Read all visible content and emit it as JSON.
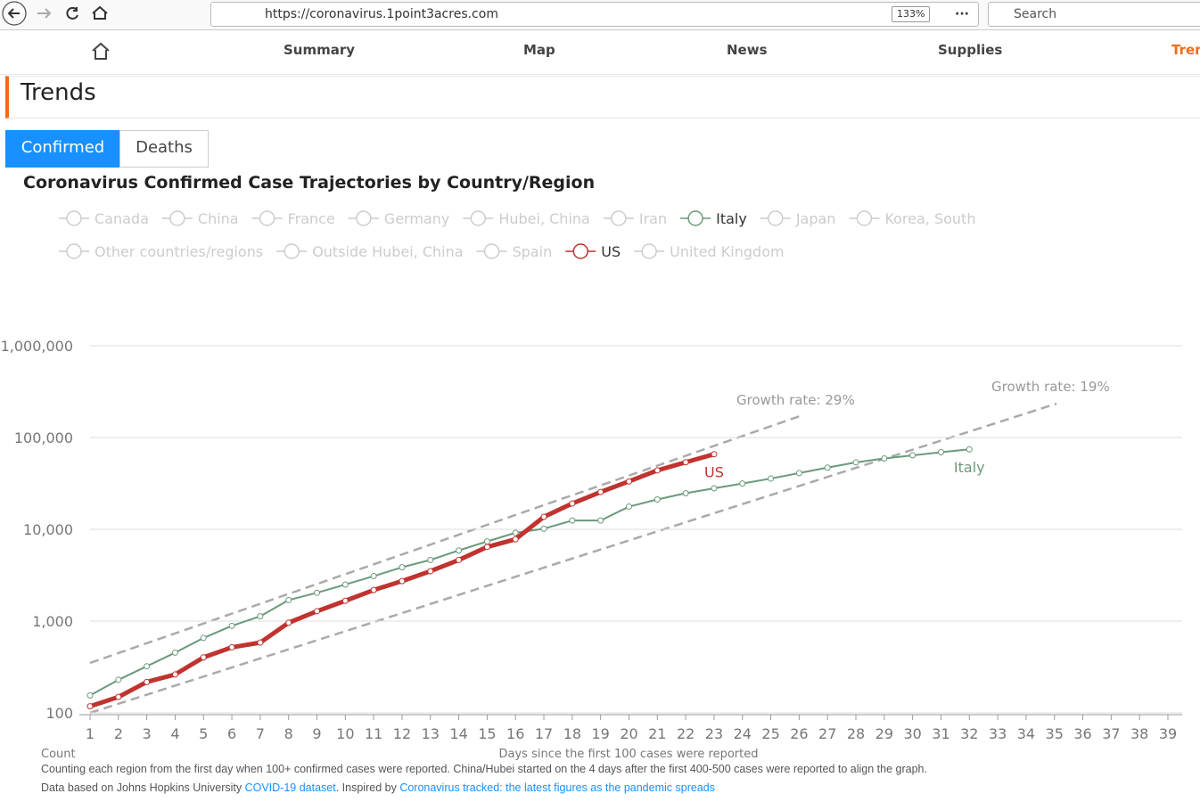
{
  "browser": {
    "url": "https://coronavirus.1point3acres.com",
    "zoom": "133%",
    "search": "Search"
  },
  "nav": {
    "items": [
      "Summary",
      "Map",
      "News",
      "Supplies",
      "Tren"
    ]
  },
  "page": {
    "heading": "Trends",
    "tabs": [
      "Confirmed",
      "Deaths"
    ],
    "footer": {
      "note": "Counting each region from the first day when 100+ confirmed cases  were reported. China/Hubei started on the 4 days after the first 400-500 cases were reported to align the graph.",
      "source_prefix": "Data based on Johns Hopkins University ",
      "source_link": "COVID-19 dataset",
      "inspired_prefix": ". Inspired by ",
      "inspired_link": "Coronavirus tracked: the latest figures as the pandemic spreads"
    }
  },
  "chart_data": {
    "type": "line",
    "title": "Coronavirus Confirmed Case Trajectories by Country/Region",
    "x_label": "Days since the first 100 cases were reported",
    "y_label": "Count",
    "log_scale": true,
    "grid": true,
    "x": [
      1,
      2,
      3,
      4,
      5,
      6,
      7,
      8,
      9,
      10,
      11,
      12,
      13,
      14,
      15,
      16,
      17,
      18,
      19,
      20,
      21,
      22,
      23,
      24,
      25,
      26,
      27,
      28,
      29,
      30,
      31,
      32,
      33,
      34,
      35,
      36,
      37,
      38,
      39
    ],
    "xlim": [
      1,
      39
    ],
    "xticks": [
      1,
      2,
      3,
      4,
      5,
      6,
      7,
      8,
      9,
      10,
      11,
      12,
      13,
      14,
      15,
      16,
      17,
      18,
      19,
      20,
      21,
      22,
      23,
      24,
      25,
      26,
      27,
      28,
      29,
      30,
      31,
      32,
      33,
      34,
      35,
      36,
      37,
      38,
      39
    ],
    "ylim": [
      100,
      1000000
    ],
    "yticks": [
      100,
      {
        "value": 1000,
        "label": "1,000"
      },
      {
        "value": 10000,
        "label": "10,000"
      },
      {
        "value": 100000,
        "label": "100,000"
      },
      {
        "value": 1000000,
        "label": "1,000,000"
      }
    ],
    "annotations": [
      "Growth rate: 29%",
      "Growth rate: 19%"
    ],
    "series": [
      {
        "name": "Canada",
        "color": "#cccccc",
        "active": false
      },
      {
        "name": "China",
        "color": "#cccccc",
        "active": false
      },
      {
        "name": "France",
        "color": "#cccccc",
        "active": false
      },
      {
        "name": "Germany",
        "color": "#cccccc",
        "active": false
      },
      {
        "name": "Hubei, China",
        "color": "#cccccc",
        "active": false
      },
      {
        "name": "Iran",
        "color": "#cccccc",
        "active": false
      },
      {
        "name": "Italy",
        "color": "#6b9a7a",
        "active": true,
        "values": [
          155,
          229,
          322,
          453,
          655,
          888,
          1128,
          1694,
          2036,
          2502,
          3089,
          3858,
          4636,
          5883,
          7375,
          9172,
          10149,
          12462,
          12462,
          17660,
          21157,
          24747,
          27980,
          31506,
          35713,
          41035,
          47021,
          53578,
          59138,
          63927,
          69176,
          74386,
          null,
          null,
          null,
          null,
          null,
          null,
          null
        ]
      },
      {
        "name": "Japan",
        "color": "#cccccc",
        "active": false
      },
      {
        "name": "Korea, South",
        "color": "#cccccc",
        "active": false
      },
      {
        "name": "Other countries/regions",
        "color": "#cccccc",
        "active": false
      },
      {
        "name": "Outside Hubei, China",
        "color": "#cccccc",
        "active": false
      },
      {
        "name": "Spain",
        "color": "#cccccc",
        "active": false
      },
      {
        "name": "US",
        "color": "#c0332f",
        "active": true,
        "values": [
          118,
          149,
          217,
          262,
          402,
          518,
          583,
          959,
          1281,
          1663,
          2179,
          2727,
          3499,
          4632,
          6421,
          7786,
          13680,
          19101,
          25493,
          33276,
          43847,
          53740,
          65778,
          null,
          null,
          null,
          null,
          null,
          null,
          null,
          null,
          null,
          null,
          null,
          null,
          null,
          null,
          null,
          null
        ]
      },
      {
        "name": "United Kingdom",
        "color": "#cccccc",
        "active": false
      }
    ]
  }
}
